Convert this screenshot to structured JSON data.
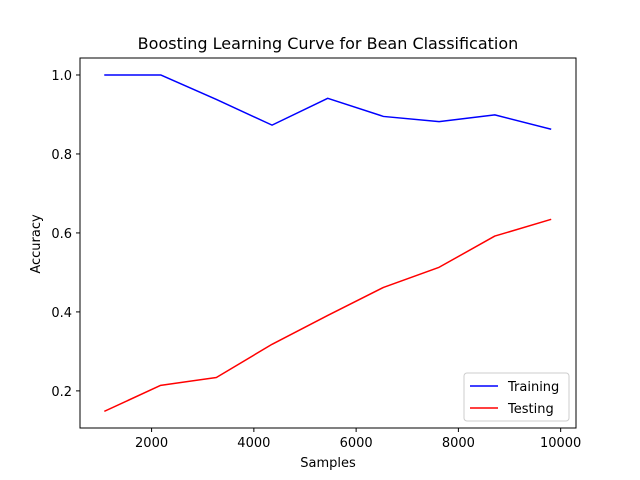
{
  "chart_data": {
    "type": "line",
    "title": "Boosting Learning Curve for Bean Classification",
    "xlabel": "Samples",
    "ylabel": "Accuracy",
    "xlim": [
      600,
      10300
    ],
    "ylim": [
      0.106,
      1.043
    ],
    "x_ticks": [
      2000,
      4000,
      6000,
      8000,
      10000
    ],
    "x_tick_labels": [
      "2000",
      "4000",
      "6000",
      "8000",
      "10000"
    ],
    "y_ticks": [
      0.2,
      0.4,
      0.6,
      0.8,
      1.0
    ],
    "y_tick_labels": [
      "0.2",
      "0.4",
      "0.6",
      "0.8",
      "1.0"
    ],
    "grid": false,
    "legend_position": "lower-right",
    "x": [
      1089,
      2178,
      3267,
      4356,
      5445,
      6534,
      7623,
      8712,
      9801
    ],
    "series": [
      {
        "name": "Training",
        "color": "#0000ff",
        "values": [
          1.0,
          1.0,
          0.938,
          0.873,
          0.941,
          0.895,
          0.882,
          0.899,
          0.863
        ]
      },
      {
        "name": "Testing",
        "color": "#ff0000",
        "values": [
          0.149,
          0.214,
          0.234,
          0.318,
          0.391,
          0.462,
          0.513,
          0.592,
          0.634
        ]
      }
    ]
  }
}
